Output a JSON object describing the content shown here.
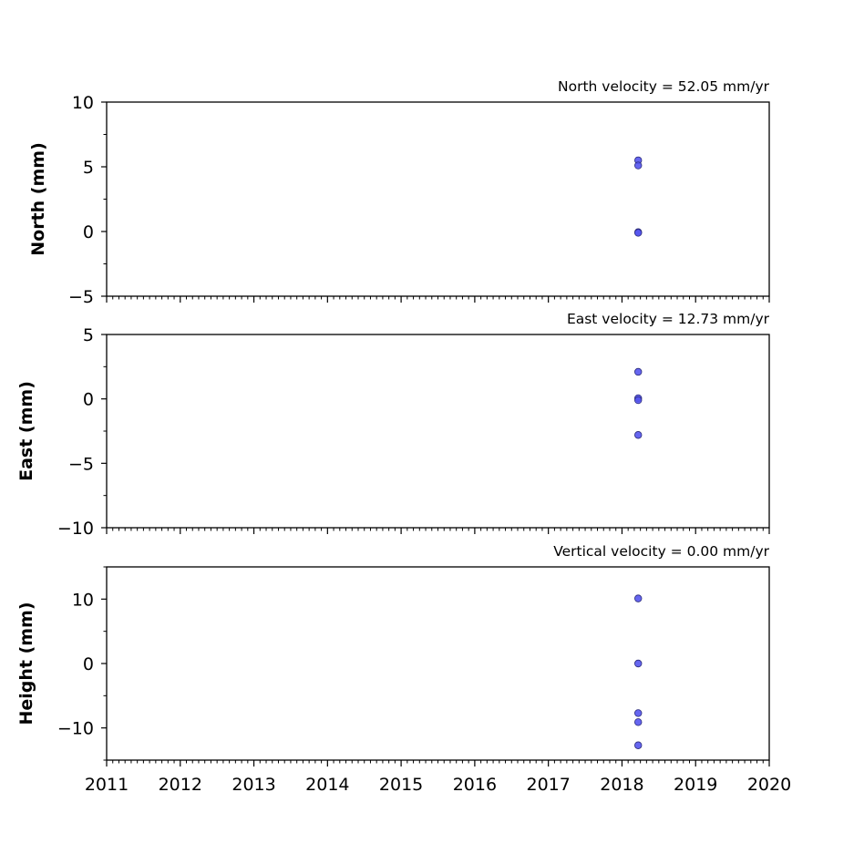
{
  "chart_data": [
    {
      "type": "scatter",
      "title": "North velocity = 52.05 mm/yr",
      "ylabel": "North (mm)",
      "xlim": [
        2011,
        2020
      ],
      "ylim": [
        -5,
        10
      ],
      "yticks": [
        -5,
        0,
        5,
        10
      ],
      "yticklabels": [
        "−5",
        "0",
        "5",
        "10"
      ],
      "series": [
        {
          "x": [
            2018.22,
            2018.22,
            2018.22,
            2018.22
          ],
          "y": [
            5.5,
            5.1,
            -0.05,
            -0.1
          ]
        }
      ]
    },
    {
      "type": "scatter",
      "title": "East velocity = 12.73 mm/yr",
      "ylabel": "East (mm)",
      "xlim": [
        2011,
        2020
      ],
      "ylim": [
        -10,
        5
      ],
      "yticks": [
        -10,
        -5,
        0,
        5
      ],
      "yticklabels": [
        "−10",
        "−5",
        "0",
        "5"
      ],
      "series": [
        {
          "x": [
            2018.22,
            2018.22,
            2018.22,
            2018.22
          ],
          "y": [
            2.1,
            0.05,
            -0.1,
            -2.8
          ]
        }
      ]
    },
    {
      "type": "scatter",
      "title": "Vertical velocity = 0.00 mm/yr",
      "ylabel": "Height (mm)",
      "xlim": [
        2011,
        2020
      ],
      "ylim": [
        -15,
        15
      ],
      "yticks": [
        -10,
        0,
        10
      ],
      "yticklabels": [
        "−10",
        "0",
        "10"
      ],
      "xticks": [
        2011,
        2012,
        2013,
        2014,
        2015,
        2016,
        2017,
        2018,
        2019,
        2020
      ],
      "xticklabels": [
        "2011",
        "2012",
        "2013",
        "2014",
        "2015",
        "2016",
        "2017",
        "2018",
        "2019",
        "2020"
      ],
      "series": [
        {
          "x": [
            2018.22,
            2018.22,
            2018.22,
            2018.22,
            2018.22
          ],
          "y": [
            10.1,
            0.0,
            -7.7,
            -9.1,
            -12.7
          ]
        }
      ]
    }
  ],
  "colors": {
    "marker_fill": "#5555ee",
    "marker_edge": "#2a2a7a",
    "axes": "#000000"
  }
}
